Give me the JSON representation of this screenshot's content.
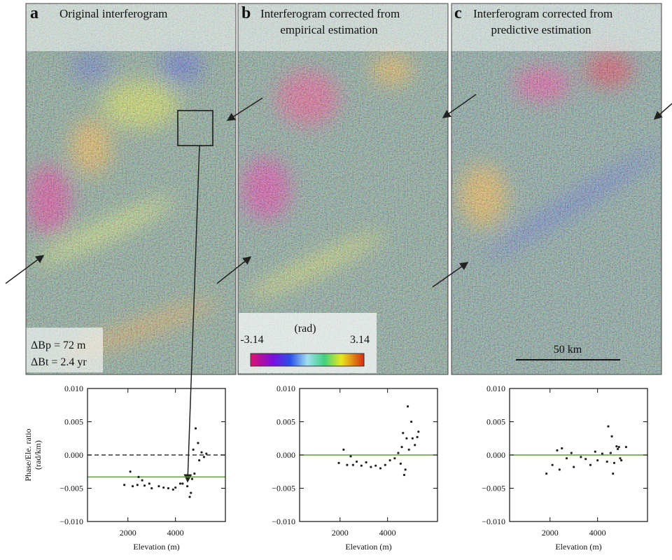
{
  "panels": [
    {
      "letter": "a",
      "title": [
        "Original interferogram"
      ],
      "notes": [
        "ΔBp = 72 m",
        "ΔBt = 2.4 yr"
      ]
    },
    {
      "letter": "b",
      "title": [
        "Interferogram corrected from",
        "empirical estimation"
      ],
      "colorbar": {
        "label": "(rad)",
        "min": -3.14,
        "max": 3.14
      }
    },
    {
      "letter": "c",
      "title": [
        "Interferogram corrected from",
        "predictive estimation"
      ],
      "scalebar": "50 km"
    }
  ],
  "chart_data": [
    {
      "type": "scatter",
      "ylabel": [
        "Phase/Ele. ratio",
        "(rad/km)"
      ],
      "xlabel": "Elevation (m)",
      "color": "#222",
      "x": [
        1850,
        2100,
        2200,
        2400,
        2450,
        2600,
        2700,
        2900,
        3000,
        3300,
        3500,
        3700,
        3900,
        4000,
        4200,
        4300,
        4500,
        4600,
        4650,
        4700,
        4750,
        4800,
        4850,
        4950,
        5000,
        5100,
        5200,
        5300
      ],
      "values": [
        -0.0045,
        -0.0025,
        -0.0047,
        -0.0045,
        -0.0033,
        -0.0038,
        -0.0046,
        -0.0043,
        -0.005,
        -0.0047,
        -0.0049,
        -0.005,
        -0.0052,
        -0.0049,
        -0.0043,
        -0.0043,
        -0.0047,
        -0.0063,
        -0.0057,
        -0.0036,
        0.0008,
        -0.0028,
        0.004,
        0.0018,
        -0.0008,
        0.0004,
        -0.0003,
        0.0002
      ],
      "hlines": [
        {
          "value": -0.0033,
          "color": "#5f9a3a",
          "style": "solid"
        },
        {
          "value": 0,
          "color": "#333",
          "style": "dashed"
        }
      ],
      "xlim": [
        300,
        6100
      ],
      "xticks": [
        2000,
        4000
      ],
      "ylim": [
        -0.01,
        0.01
      ],
      "yticks": [
        {
          "value": -0.01,
          "label": "−0.010"
        },
        {
          "value": -0.005,
          "label": "−0.005"
        },
        {
          "value": 0,
          "label": "0.000"
        },
        {
          "value": 0.005,
          "label": "0.005"
        },
        {
          "value": 0.01,
          "label": "0.010"
        }
      ]
    },
    {
      "type": "scatter",
      "xlabel": "Elevation (m)",
      "color": "#222",
      "x": [
        1950,
        2150,
        2300,
        2450,
        2550,
        2700,
        2900,
        3100,
        3300,
        3500,
        3700,
        3900,
        4100,
        4300,
        4450,
        4550,
        4600,
        4650,
        4700,
        4750,
        4800,
        4850,
        4900,
        5000,
        5050,
        5150,
        5250,
        5300
      ],
      "values": [
        -0.0012,
        0.0008,
        -0.0015,
        -0.0002,
        -0.0015,
        -0.001,
        -0.0016,
        -0.0011,
        -0.0018,
        -0.0016,
        -0.002,
        -0.0015,
        -0.0008,
        -0.0005,
        0.0003,
        -0.0013,
        0.0012,
        0.0033,
        -0.003,
        -0.0022,
        0.0025,
        0.0073,
        0.0008,
        0.005,
        0.0025,
        0.0015,
        0.0027,
        0.0035
      ],
      "hlines": [
        {
          "value": 0,
          "color": "#5f9a3a",
          "style": "solid"
        }
      ],
      "xlim": [
        300,
        6100
      ],
      "xticks": [
        2000,
        4000
      ],
      "ylim": [
        -0.01,
        0.01
      ],
      "yticks": [
        {
          "value": -0.01,
          "label": "−0.010"
        },
        {
          "value": -0.005,
          "label": "−0.005"
        },
        {
          "value": 0,
          "label": "0.000"
        },
        {
          "value": 0.005,
          "label": "0.005"
        },
        {
          "value": 0.01,
          "label": "0.010"
        }
      ]
    },
    {
      "type": "scatter",
      "xlabel": "Elevation (m)",
      "color": "#222",
      "x": [
        1850,
        2100,
        2300,
        2400,
        2500,
        2700,
        2900,
        3000,
        3300,
        3500,
        3700,
        3900,
        4000,
        4200,
        4400,
        4450,
        4550,
        4600,
        4650,
        4700,
        4800,
        4850,
        4900,
        4950,
        5000,
        5200
      ],
      "values": [
        -0.0028,
        -0.0015,
        0.0007,
        -0.0022,
        0.001,
        -0.0005,
        0.0003,
        -0.0018,
        -0.0003,
        -0.0006,
        -0.0015,
        0.0005,
        -0.0008,
        0.0002,
        -0.001,
        0.0043,
        0.0003,
        0.0028,
        -0.0028,
        -0.0012,
        0.0013,
        0.0009,
        0.0012,
        -0.0005,
        -0.0008,
        0.0012
      ],
      "hlines": [
        {
          "value": 0,
          "color": "#5f9a3a",
          "style": "solid"
        }
      ],
      "xlim": [
        300,
        6100
      ],
      "xticks": [
        2000,
        4000
      ],
      "ylim": [
        -0.01,
        0.01
      ],
      "yticks": [
        {
          "value": -0.01,
          "label": "−0.010"
        },
        {
          "value": -0.005,
          "label": "−0.005"
        },
        {
          "value": 0,
          "label": "0.000"
        },
        {
          "value": 0.005,
          "label": "0.005"
        },
        {
          "value": 0.01,
          "label": "0.010"
        }
      ]
    }
  ]
}
